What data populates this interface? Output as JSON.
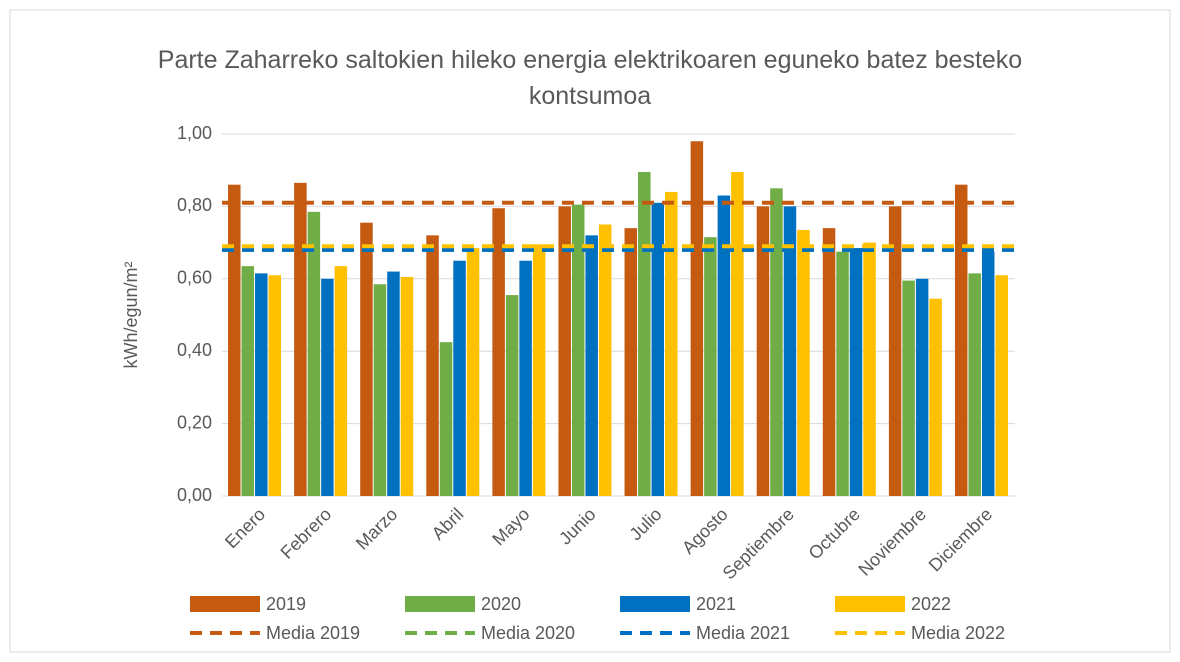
{
  "chart_data": {
    "type": "bar",
    "title": "Parte Zaharreko saltokien hileko energia elektrikoaren eguneko batez besteko kontsumoa",
    "y_label": "kWh/egun/m²",
    "categories": [
      "Enero",
      "Febrero",
      "Marzo",
      "Abril",
      "Mayo",
      "Junio",
      "Julio",
      "Agosto",
      "Septiembre",
      "Octubre",
      "Noviembre",
      "Diciembre"
    ],
    "series": [
      {
        "name": "2019",
        "color": "#c55a11",
        "values": [
          0.86,
          0.865,
          0.755,
          0.72,
          0.795,
          0.8,
          0.74,
          0.98,
          0.8,
          0.74,
          0.8,
          0.86
        ]
      },
      {
        "name": "2020",
        "color": "#70ad47",
        "values": [
          0.635,
          0.785,
          0.585,
          0.425,
          0.555,
          0.805,
          0.895,
          0.715,
          0.85,
          0.675,
          0.595,
          0.615
        ]
      },
      {
        "name": "2021",
        "color": "#0070c0",
        "values": [
          0.615,
          0.6,
          0.62,
          0.65,
          0.65,
          0.72,
          0.81,
          0.83,
          0.8,
          0.685,
          0.6,
          0.675
        ]
      },
      {
        "name": "2022",
        "color": "#ffc000",
        "values": [
          0.61,
          0.635,
          0.605,
          0.685,
          0.695,
          0.75,
          0.84,
          0.895,
          0.735,
          0.7,
          0.545,
          0.61
        ]
      }
    ],
    "mean_lines": [
      {
        "name": "Media 2019",
        "color": "#c55a11",
        "value": 0.81
      },
      {
        "name": "Media 2020",
        "color": "#70ad47",
        "value": 0.68
      },
      {
        "name": "Media 2021",
        "color": "#0070c0",
        "value": 0.68
      },
      {
        "name": "Media 2022",
        "color": "#ffc000",
        "value": 0.69
      }
    ],
    "ylim": [
      0,
      1
    ],
    "yticks": [
      {
        "value": 0,
        "label": "0,00"
      },
      {
        "value": 0.2,
        "label": "0,20"
      },
      {
        "value": 0.4,
        "label": "0,40"
      },
      {
        "value": 0.6,
        "label": "0,60"
      },
      {
        "value": 0.8,
        "label": "0,80"
      },
      {
        "value": 1,
        "label": "1,00"
      }
    ],
    "grid": true
  }
}
